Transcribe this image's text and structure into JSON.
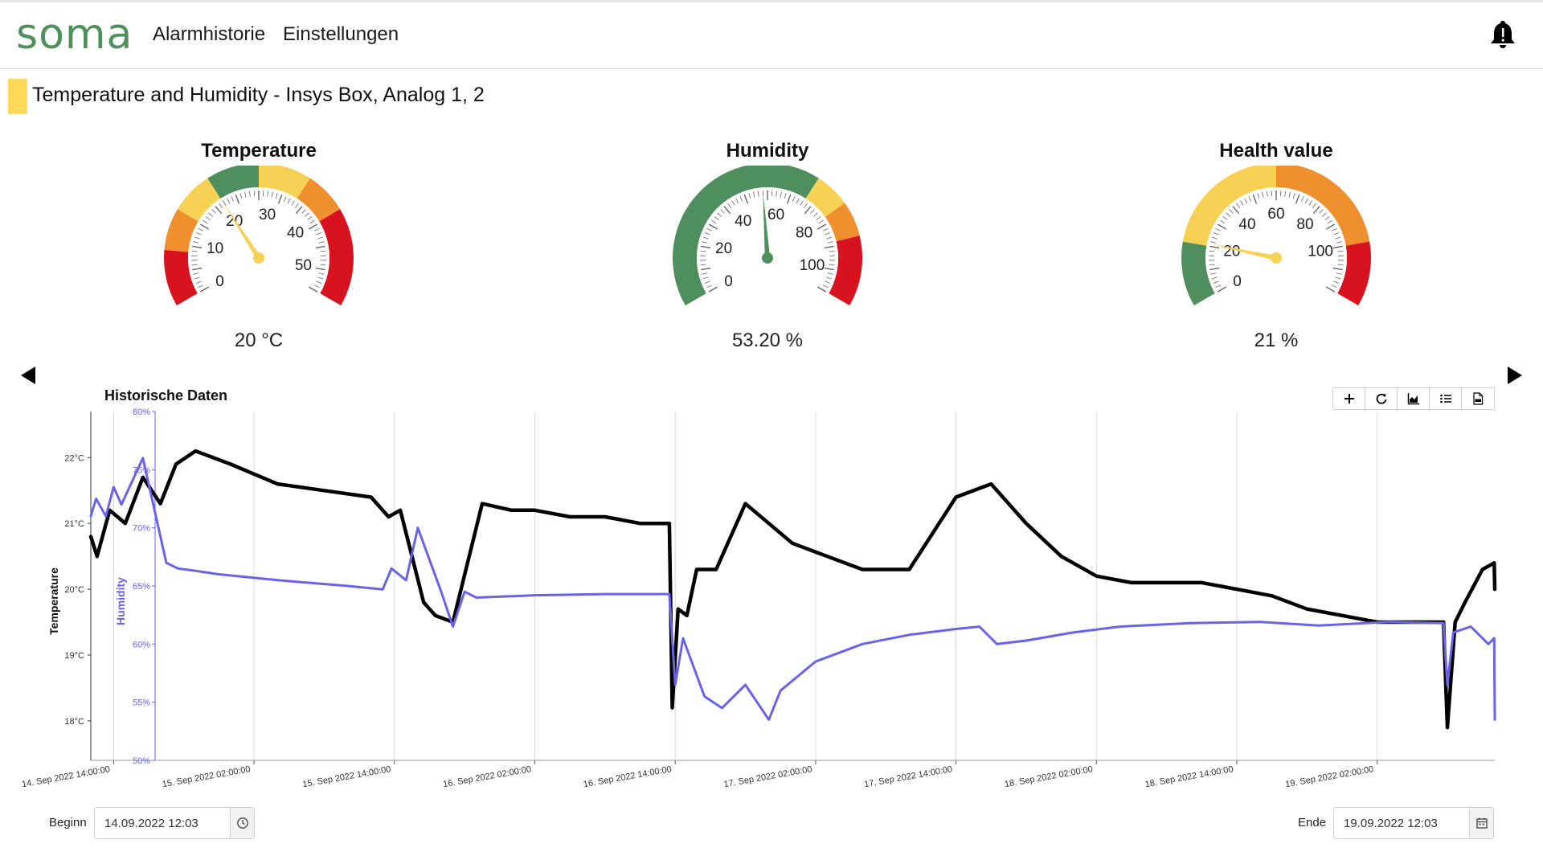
{
  "app": {
    "logo": "soma",
    "nav": [
      "Alarmhistorie",
      "Einstellungen"
    ]
  },
  "page": {
    "title": "Temperature and Humidity - Insys Box, Analog 1, 2"
  },
  "gauges": [
    {
      "title": "Temperature",
      "value_text": "20 °C",
      "value": 20,
      "min": 0,
      "max": 55,
      "labels": [
        0,
        10,
        20,
        30,
        40,
        50
      ],
      "needle_color": "#f7d154",
      "bands": [
        {
          "from": 0,
          "to": 8,
          "color": "#d9121f"
        },
        {
          "from": 8,
          "to": 14,
          "color": "#ef8f2e"
        },
        {
          "from": 14,
          "to": 20,
          "color": "#f7d154"
        },
        {
          "from": 20,
          "to": 27.5,
          "color": "#4f8f5e"
        },
        {
          "from": 27.5,
          "to": 35,
          "color": "#f7d154"
        },
        {
          "from": 35,
          "to": 41,
          "color": "#ef8f2e"
        },
        {
          "from": 41,
          "to": 55,
          "color": "#d9121f"
        }
      ]
    },
    {
      "title": "Humidity",
      "value_text": "53.20 %",
      "value": 53.2,
      "min": 0,
      "max": 110,
      "labels": [
        0,
        20,
        40,
        60,
        80,
        100
      ],
      "needle_color": "#4f8f5e",
      "bands": [
        {
          "from": 0,
          "to": 70,
          "color": "#4f8f5e"
        },
        {
          "from": 70,
          "to": 80,
          "color": "#f7d154"
        },
        {
          "from": 80,
          "to": 90,
          "color": "#ef8f2e"
        },
        {
          "from": 90,
          "to": 110,
          "color": "#d9121f"
        }
      ]
    },
    {
      "title": "Health value",
      "value_text": "21 %",
      "value": 21,
      "min": 0,
      "max": 120,
      "labels": [
        0,
        20,
        40,
        60,
        80,
        100
      ],
      "needle_color": "#f7d154",
      "bands": [
        {
          "from": 0,
          "to": 20,
          "color": "#4f8f5e"
        },
        {
          "from": 20,
          "to": 60,
          "color": "#f7d154"
        },
        {
          "from": 60,
          "to": 100,
          "color": "#ef8f2e"
        },
        {
          "from": 100,
          "to": 120,
          "color": "#d9121f"
        }
      ]
    }
  ],
  "chart": {
    "title": "Historische Daten"
  },
  "toolbar": {
    "icons": [
      "plus-icon",
      "refresh-icon",
      "area-chart-icon",
      "list-icon",
      "csv-file-icon"
    ]
  },
  "chart_data": {
    "type": "line",
    "title": "Historische Daten",
    "ylabel": "Temperature",
    "ylabel2": "Humidity",
    "ylim": [
      17.4,
      22.7
    ],
    "ylim2": [
      50,
      80
    ],
    "yticks": [
      "18°C",
      "19°C",
      "20°C",
      "21°C",
      "22°C"
    ],
    "yticks2": [
      "50%",
      "55%",
      "60%",
      "65%",
      "70%",
      "75%",
      "80%"
    ],
    "xlim": [
      "2022-09-14 12:03",
      "2022-09-19 12:03"
    ],
    "xticks": [
      "14. Sep 2022 14:00:00",
      "15. Sep 2022 02:00:00",
      "15. Sep 2022 14:00:00",
      "16. Sep 2022 02:00:00",
      "16. Sep 2022 14:00:00",
      "17. Sep 2022 02:00:00",
      "17. Sep 2022 14:00:00",
      "18. Sep 2022 02:00:00",
      "18. Sep 2022 14:00:00",
      "19. Sep 2022 02:00:00"
    ],
    "grid": "vertical",
    "series": [
      {
        "name": "Temperature",
        "color": "#000000",
        "axis": "left",
        "x": [
          "2022-09-14 12:03",
          "2022-09-14 12:35",
          "2022-09-14 13:40",
          "2022-09-14 15:00",
          "2022-09-14 16:30",
          "2022-09-14 18:00",
          "2022-09-14 19:20",
          "2022-09-14 21:00",
          "2022-09-15 00:00",
          "2022-09-15 04:00",
          "2022-09-15 08:00",
          "2022-09-15 12:00",
          "2022-09-15 13:30",
          "2022-09-15 14:30",
          "2022-09-15 16:30",
          "2022-09-15 17:30",
          "2022-09-15 19:00",
          "2022-09-15 21:30",
          "2022-09-16 00:00",
          "2022-09-16 02:00",
          "2022-09-16 05:00",
          "2022-09-16 08:00",
          "2022-09-16 11:00",
          "2022-09-16 13:30",
          "2022-09-16 13:45",
          "2022-09-16 14:15",
          "2022-09-16 15:00",
          "2022-09-16 15:50",
          "2022-09-16 17:30",
          "2022-09-16 20:00",
          "2022-09-16 22:00",
          "2022-09-17 00:00",
          "2022-09-17 03:00",
          "2022-09-17 06:00",
          "2022-09-17 10:00",
          "2022-09-17 14:00",
          "2022-09-17 17:00",
          "2022-09-17 20:00",
          "2022-09-17 23:00",
          "2022-09-18 02:00",
          "2022-09-18 05:00",
          "2022-09-18 08:00",
          "2022-09-18 11:00",
          "2022-09-18 14:00",
          "2022-09-18 17:00",
          "2022-09-18 20:00",
          "2022-09-18 23:00",
          "2022-09-19 02:00",
          "2022-09-19 05:00",
          "2022-09-19 07:40",
          "2022-09-19 08:00",
          "2022-09-19 08:40",
          "2022-09-19 09:30",
          "2022-09-19 11:00",
          "2022-09-19 12:00",
          "2022-09-19 12:03"
        ],
        "values": [
          20.8,
          20.5,
          21.2,
          21.0,
          21.7,
          21.3,
          21.9,
          22.1,
          21.9,
          21.6,
          21.5,
          21.4,
          21.1,
          21.2,
          19.8,
          19.6,
          19.5,
          21.3,
          21.2,
          21.2,
          21.1,
          21.1,
          21.0,
          21.0,
          18.2,
          19.7,
          19.6,
          20.3,
          20.3,
          21.3,
          21.0,
          20.7,
          20.5,
          20.3,
          20.3,
          21.4,
          21.6,
          21.0,
          20.5,
          20.2,
          20.1,
          20.1,
          20.1,
          20.0,
          19.9,
          19.7,
          19.6,
          19.5,
          19.5,
          19.5,
          17.9,
          19.5,
          19.8,
          20.3,
          20.4,
          20.0
        ]
      },
      {
        "name": "Humidity",
        "color": "#6a62e8",
        "axis": "right",
        "x": [
          "2022-09-14 12:03",
          "2022-09-14 12:30",
          "2022-09-14 13:20",
          "2022-09-14 14:00",
          "2022-09-14 14:40",
          "2022-09-14 16:30",
          "2022-09-14 17:50",
          "2022-09-14 18:30",
          "2022-09-14 19:30",
          "2022-09-14 21:00",
          "2022-09-14 23:00",
          "2022-09-15 04:00",
          "2022-09-15 10:00",
          "2022-09-15 13:00",
          "2022-09-15 13:45",
          "2022-09-15 15:00",
          "2022-09-15 16:00",
          "2022-09-15 18:00",
          "2022-09-15 19:00",
          "2022-09-15 20:00",
          "2022-09-15 21:00",
          "2022-09-16 02:00",
          "2022-09-16 08:00",
          "2022-09-16 13:30",
          "2022-09-16 14:00",
          "2022-09-16 14:40",
          "2022-09-16 16:30",
          "2022-09-16 18:00",
          "2022-09-16 20:00",
          "2022-09-16 22:00",
          "2022-09-16 23:00",
          "2022-09-17 02:00",
          "2022-09-17 06:00",
          "2022-09-17 10:00",
          "2022-09-17 14:00",
          "2022-09-17 16:00",
          "2022-09-17 17:30",
          "2022-09-17 20:00",
          "2022-09-18 00:00",
          "2022-09-18 04:00",
          "2022-09-18 10:00",
          "2022-09-18 16:00",
          "2022-09-18 21:00",
          "2022-09-19 03:00",
          "2022-09-19 07:40",
          "2022-09-19 08:00",
          "2022-09-19 08:30",
          "2022-09-19 10:00",
          "2022-09-19 11:30",
          "2022-09-19 12:00",
          "2022-09-19 12:03"
        ],
        "values": [
          71.0,
          72.5,
          71.0,
          73.5,
          72.0,
          76.0,
          70.0,
          67.0,
          66.5,
          66.3,
          66.0,
          65.5,
          65.0,
          64.7,
          66.5,
          65.5,
          70.0,
          64.5,
          61.5,
          64.5,
          64.0,
          64.2,
          64.3,
          64.3,
          56.5,
          60.5,
          55.5,
          54.5,
          56.5,
          53.5,
          56.0,
          58.5,
          60.0,
          60.8,
          61.3,
          61.5,
          60.0,
          60.3,
          61.0,
          61.5,
          61.8,
          61.9,
          61.6,
          61.9,
          61.8,
          56.5,
          61.0,
          61.5,
          60.0,
          60.5,
          53.5
        ]
      }
    ]
  },
  "date_range": {
    "begin_label": "Beginn",
    "begin_value": "14.09.2022 12:03",
    "end_label": "Ende",
    "end_value": "19.09.2022 12:03"
  }
}
